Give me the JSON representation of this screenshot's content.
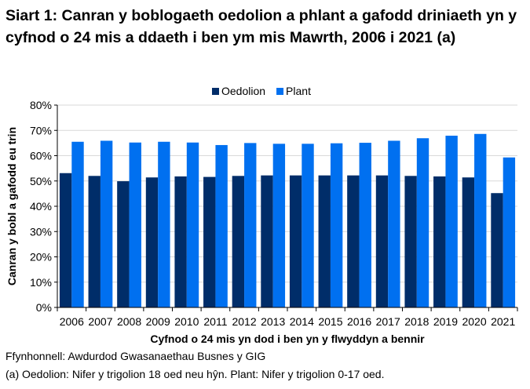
{
  "chart_data": {
    "type": "bar",
    "title": "Siart 1: Canran y boblogaeth oedolion a phlant a gafodd driniaeth yn y cyfnod o 24 mis a ddaeth i ben ym mis Mawrth, 2006 i 2021 (a)",
    "xlabel": "Cyfnod o 24 mis yn dod i ben yn y flwyddyn a bennir",
    "ylabel": "Canran y bobl a gafodd eu trin",
    "ylim": [
      0,
      80
    ],
    "yticks": [
      "0%",
      "10%",
      "20%",
      "30%",
      "40%",
      "50%",
      "60%",
      "70%",
      "80%"
    ],
    "grid": true,
    "legend": "top",
    "categories": [
      "2006",
      "2007",
      "2008",
      "2009",
      "2010",
      "2011",
      "2012",
      "2013",
      "2014",
      "2015",
      "2016",
      "2017",
      "2018",
      "2019",
      "2020",
      "2021"
    ],
    "series": [
      {
        "name": "Oedolion",
        "color": "#002d69",
        "values": [
          53.1,
          52.0,
          49.9,
          51.4,
          51.8,
          51.6,
          52.0,
          52.2,
          52.2,
          52.2,
          52.2,
          52.2,
          52.0,
          51.8,
          51.4,
          45.2
        ]
      },
      {
        "name": "Plant",
        "color": "#0070f0",
        "values": [
          65.5,
          65.9,
          65.2,
          65.5,
          65.2,
          64.2,
          65.0,
          64.7,
          64.7,
          64.9,
          65.1,
          65.9,
          66.9,
          67.9,
          68.6,
          59.3
        ]
      }
    ]
  },
  "footnotes": {
    "source": "Ffynhonnell: Awdurdod Gwasanaethau Busnes y GIG",
    "note": "(a) Oedolion: Nifer y trigolion 18 oed neu hŷn. Plant: Nifer y trigolion 0-17 oed."
  }
}
